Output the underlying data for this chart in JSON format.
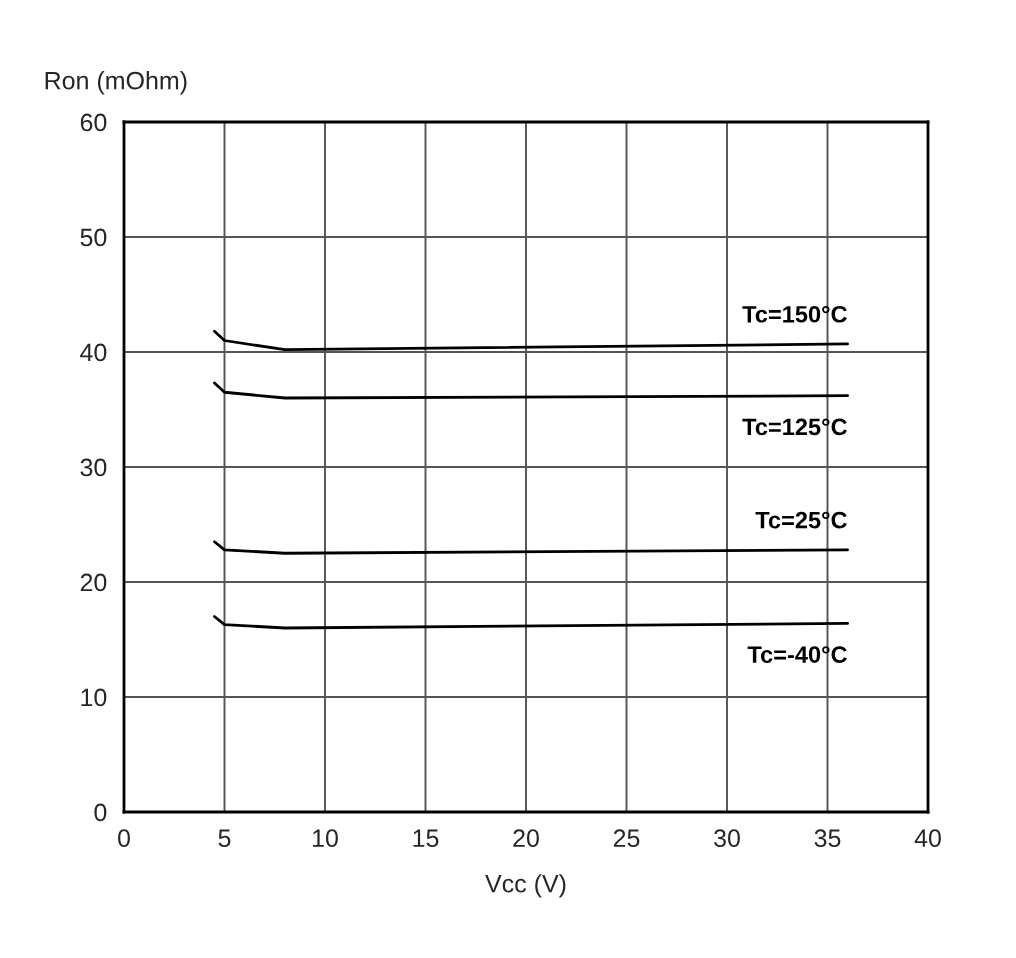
{
  "chart_data": {
    "type": "line",
    "xlabel": "Vcc (V)",
    "ylabel": "Ron (mOhm)",
    "xlim": [
      0,
      40
    ],
    "xticks": [
      0,
      5,
      10,
      15,
      20,
      25,
      30,
      35,
      40
    ],
    "ylim": [
      0,
      60
    ],
    "yticks": [
      0,
      10,
      20,
      30,
      40,
      50,
      60
    ],
    "grid": true,
    "legend": false,
    "marker": "none",
    "line_style": "solid",
    "series": [
      {
        "name": "Tc=150°C",
        "color": "#000000",
        "x": [
          4.5,
          5,
          8,
          36
        ],
        "values": [
          41.8,
          41,
          40.2,
          40.7
        ]
      },
      {
        "name": "Tc=125°C",
        "color": "#000000",
        "x": [
          4.5,
          5,
          8,
          36
        ],
        "values": [
          37.3,
          36.5,
          36,
          36.2
        ]
      },
      {
        "name": "Tc=25°C",
        "color": "#000000",
        "x": [
          4.5,
          5,
          8,
          36
        ],
        "values": [
          23.5,
          22.8,
          22.5,
          22.8
        ]
      },
      {
        "name": "Tc=-40°C",
        "color": "#000000",
        "x": [
          4.5,
          5,
          8,
          36
        ],
        "values": [
          17,
          16.3,
          16,
          16.4
        ]
      }
    ]
  }
}
